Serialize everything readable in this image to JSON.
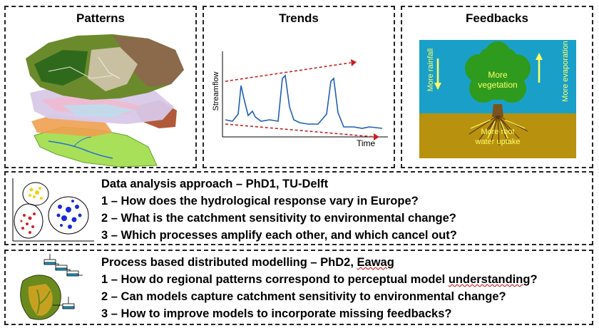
{
  "panels": {
    "patterns": {
      "title": "Patterns"
    },
    "trends": {
      "title": "Trends",
      "ylabel": "Streamflow",
      "xlabel": "Time"
    },
    "feedbacks": {
      "title": "Feedbacks",
      "rainfall": "More rainfall",
      "evaporation": "More evaporation",
      "vegetation_line1": "More",
      "vegetation_line2": "vegetation",
      "root_line1": "More root",
      "root_line2": "water uptake",
      "colors": {
        "sky": "#1aa0c8",
        "soil": "#b8920e",
        "text": "#ffff66",
        "tree": "#2e9a1e"
      }
    }
  },
  "phd1": {
    "heading": "Data analysis approach – PhD1, TU-Delft",
    "q1": "1 – How does the hydrological response vary in Europe?",
    "q2": "2 – What is the catchment sensitivity to environmental change?",
    "q3": "3 – Which processes amplify each other, and which cancel out?"
  },
  "phd2": {
    "heading_prefix": "Process based distributed modelling – PhD2, ",
    "heading_org": "Eawag",
    "q1_prefix": "1 – How do regional patterns correspond to perceptual model ",
    "q1_underlined": "understanding",
    "q1_suffix": "?",
    "q2": "2 – Can models capture catchment sensitivity to environmental change?",
    "q3": "3 – How to improve models to incorporate missing feedbacks?"
  }
}
